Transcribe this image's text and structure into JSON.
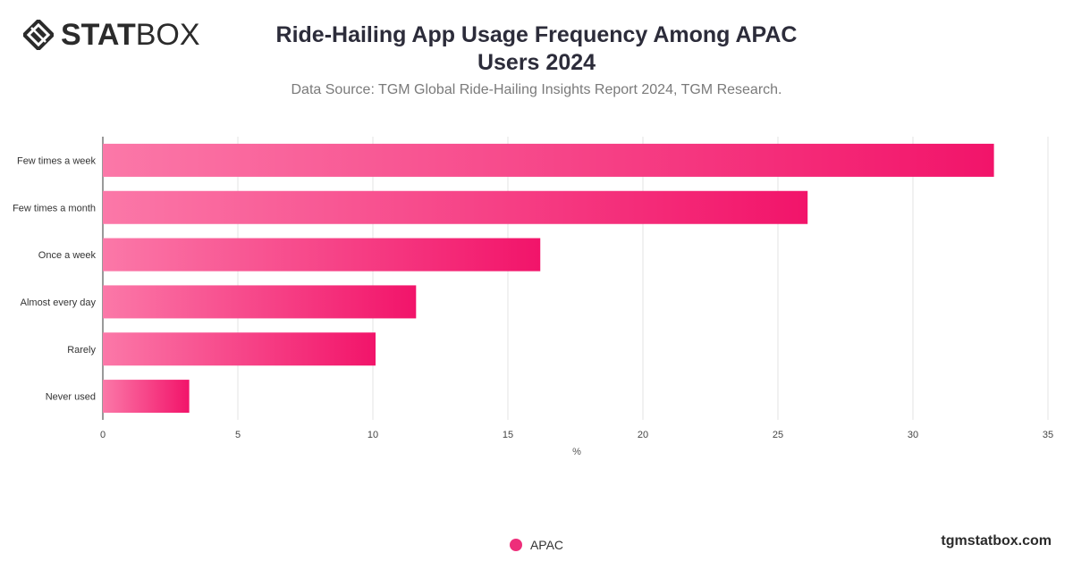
{
  "brand": {
    "logo_bold": "STAT",
    "logo_light": "BOX",
    "watermark": "tgmstatbox.com"
  },
  "colors": {
    "bar_start": "#fb78a8",
    "bar_end": "#f2146a",
    "legend": "#ee2e7a"
  },
  "chart_data": {
    "type": "bar",
    "orientation": "horizontal",
    "title": "Ride-Hailing App Usage Frequency Among APAC Users 2024",
    "subtitle": "Data Source: TGM Global Ride-Hailing Insights Report 2024, TGM Research.",
    "xlabel": "%",
    "ylabel": "",
    "xlim": [
      0,
      35
    ],
    "xticks": [
      0,
      5,
      10,
      15,
      20,
      25,
      30,
      35
    ],
    "grid": true,
    "legend_position": "bottom",
    "categories": [
      "Few times a week",
      "Few times a month",
      "Once a week",
      "Almost every day",
      "Rarely",
      "Never used"
    ],
    "series": [
      {
        "name": "APAC",
        "values": [
          33,
          26.1,
          16.2,
          11.6,
          10.1,
          3.2
        ]
      }
    ]
  }
}
